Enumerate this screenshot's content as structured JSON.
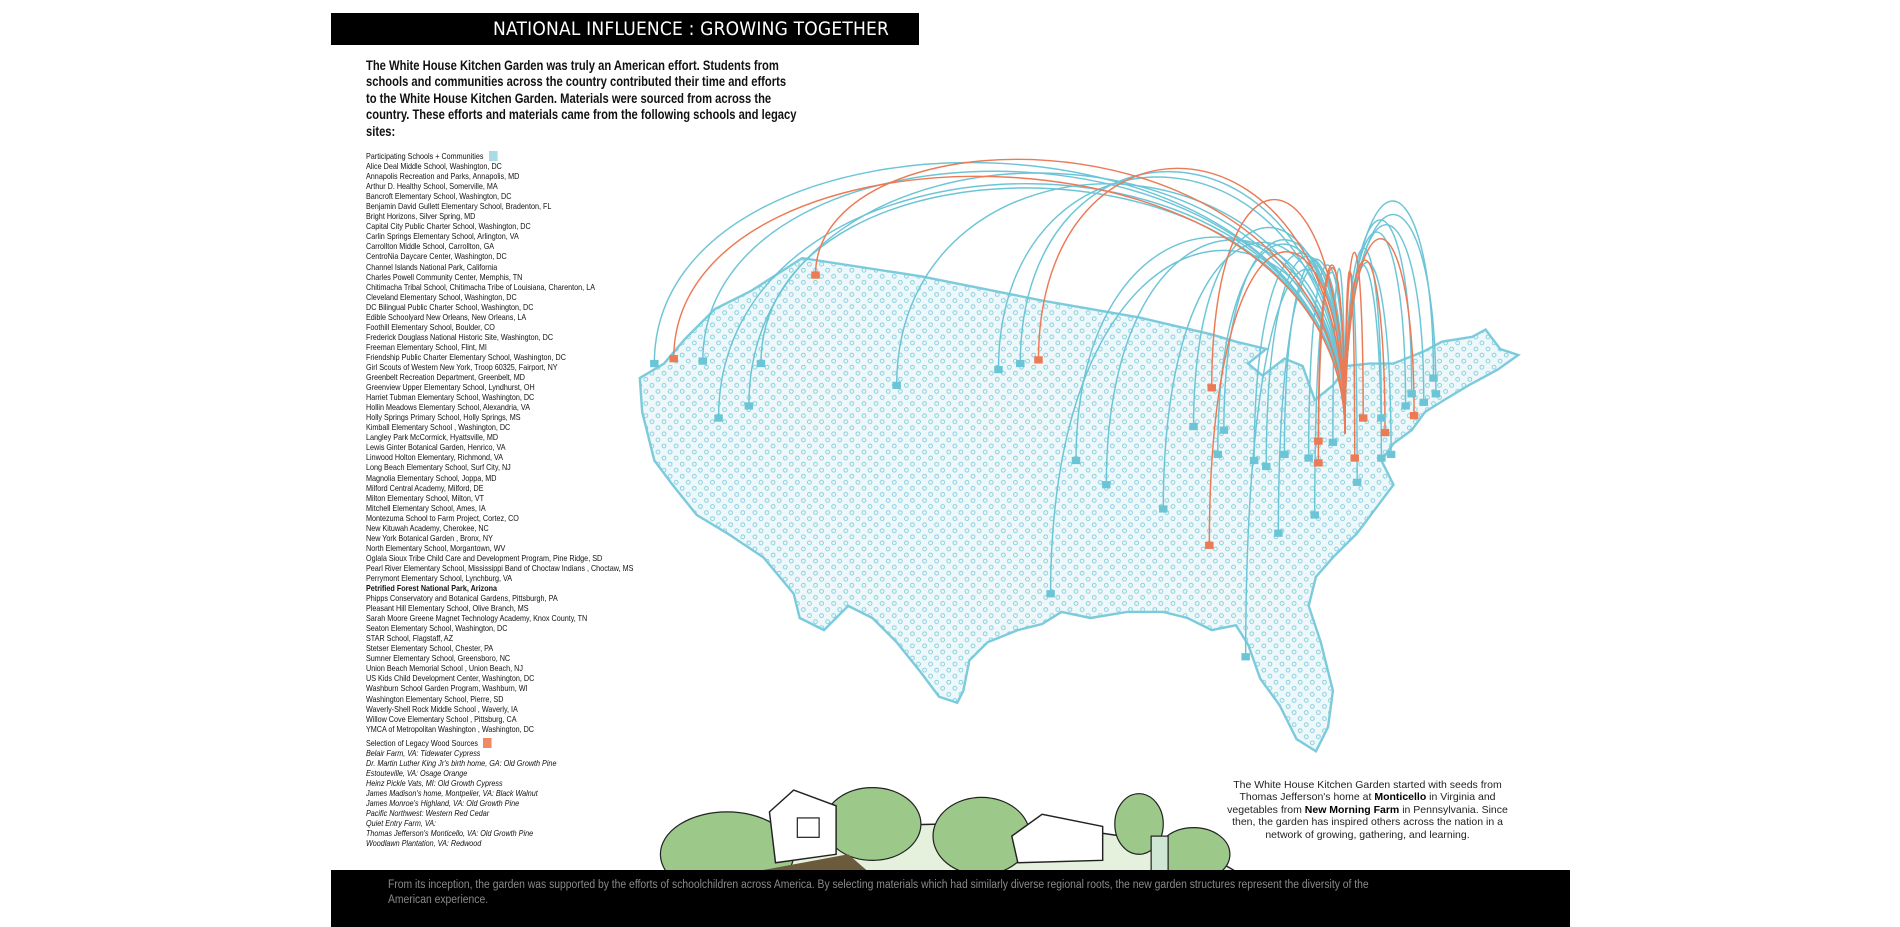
{
  "header": {
    "title": "NATIONAL INFLUENCE : GROWING TOGETHER"
  },
  "intro": "The White House Kitchen Garden was truly an American effort.  Students from schools and communities across the country contributed their time and efforts to the White House Kitchen Garden.  Materials were sourced from across the country.  These efforts and materials came from the following schools and legacy sites:",
  "schools": {
    "heading": "Participating Schools + Communities",
    "color": "#a9dbe6",
    "items": [
      "Alice Deal Middle School, Washington, DC",
      "Annapolis Recreation and Parks, Annapolis, MD",
      "Arthur D. Healthy School, Somerville, MA",
      "Bancroft Elementary School, Washington, DC",
      "Benjamin David Gullett Elementary School, Bradenton, FL",
      "Bright Horizons, Silver Spring, MD",
      "Capital City Public Charter School, Washington, DC",
      "Carlin Springs Elementary School, Arlington, VA",
      "Carrollton Middle School, Carrollton, GA",
      "CentroNia Daycare Center, Washington, DC",
      "Channel Islands National Park, California",
      "Charles Powell Community Center, Memphis, TN",
      "Chitimacha Tribal School, Chitimacha Tribe of Louisiana, Charenton, LA",
      "Cleveland Elementary School, Washington, DC",
      "DC Bilingual Public Charter School, Washington, DC",
      "Edible Schoolyard New Orleans, New Orleans, LA",
      "Foothill Elementary School, Boulder, CO",
      "Frederick Douglass National Historic Site, Washington, DC",
      "Freeman Elementary School, Flint, MI",
      "Friendship Public Charter Elementary School, Washington, DC",
      "Girl Scouts of Western New York, Troop 60325, Fairport, NY",
      "Greenbelt Recreation Department, Greenbelt, MD",
      "Greenview Upper Elementary School, Lyndhurst, OH",
      "Harriet Tubman Elementary School, Washington, DC",
      "Hollin Meadows Elementary School, Alexandria, VA",
      "Holly Springs Primary School, Holly Springs, MS",
      "Kimball Elementary School , Washington, DC",
      "Langley Park McCormick, Hyattsville, MD",
      "Lewis Ginter Botanical Garden, Henrico, VA",
      "Linwood Holton Elementary, Richmond, VA",
      "Long Beach Elementary School, Surf City, NJ",
      "Magnolia Elementary School, Joppa, MD",
      "Milford Central Academy, Milford, DE",
      "Milton Elementary School, Milton, VT",
      "Mitchell Elementary School, Ames, IA",
      "Montezuma School to Farm Project, Cortez, CO",
      "New Kituwah Academy, Cherokee, NC",
      "New York Botanical Garden , Bronx, NY",
      "North Elementary School, Morgantown, WV",
      "Oglala Sioux Tribe Child Care and Development Program, Pine Ridge, SD",
      "Pearl River Elementary School, Mississippi Band of Choctaw Indians , Choctaw, MS",
      "Perrymont Elementary School, Lynchburg, VA",
      "Petrified Forest National Park, Arizona",
      "Phipps Conservatory and Botanical Gardens, Pittsburgh, PA",
      "Pleasant Hill Elementary School, Olive Branch, MS",
      "Sarah Moore Greene Magnet Technology Academy, Knox County, TN",
      "Seaton Elementary School, Washington, DC",
      "STAR School, Flagstaff, AZ",
      "Stetser Elementary School, Chester, PA",
      "Sumner Elementary School, Greensboro, NC",
      "Union Beach Memorial School , Union Beach, NJ",
      "US Kids Child Development Center, Washington, DC",
      "Washburn School Garden Program, Washburn, WI",
      "Washington Elementary School, Pierre, SD",
      "Waverly-Shell Rock Middle School , Waverly, IA",
      "Willow Cove Elementary School , Pittsburg, CA",
      "YMCA of Metropolitan Washington , Washington, DC"
    ],
    "bold_item": "Petrified Forest National Park, Arizona"
  },
  "legacy": {
    "heading": "Selection of Legacy Wood Sources",
    "color": "#f08a63",
    "items": [
      "Belair Farm, VA: Tidewater Cypress",
      "Dr. Martin Luther King Jr's birth home, GA: Old Growth Pine",
      "Estouteville, VA: Osage Orange",
      "Heinz Pickle Vats, MI: Old Growth Cypress",
      "James Madison's home, Montpelier, VA: Black Walnut",
      "James Monroe's Highland, VA: Old Growth Pine",
      "Pacific Northwest: Western Red Cedar",
      "Quiet Entry Farm, VA:",
      "Thomas Jefferson's Monticello, VA: Old Growth Pine",
      "Woodlawn Plantation, VA: Redwood"
    ]
  },
  "map": {
    "school_line_color": "#6cc5d6",
    "legacy_line_color": "#ec7a55",
    "land_fill": "#eef8fa",
    "outline_color": "#7ccbdc"
  },
  "caption": {
    "p1": "The White House Kitchen Garden started with seeds from Thomas Jefferson's home at ",
    "b1": "Monticello",
    "p2": " in Virginia  and vegetables from ",
    "b2": "New Morning Farm",
    "p3": "  in Pennsylvania. Since then, the garden has inspired others across the nation in a network of growing, gathering, and learning."
  },
  "footer": {
    "text": "From its inception, the garden was supported by the efforts of schoolchildren across America.  By selecting materials which had similarly diverse regional roots, the new garden structures represent the diversity of the American experience."
  }
}
